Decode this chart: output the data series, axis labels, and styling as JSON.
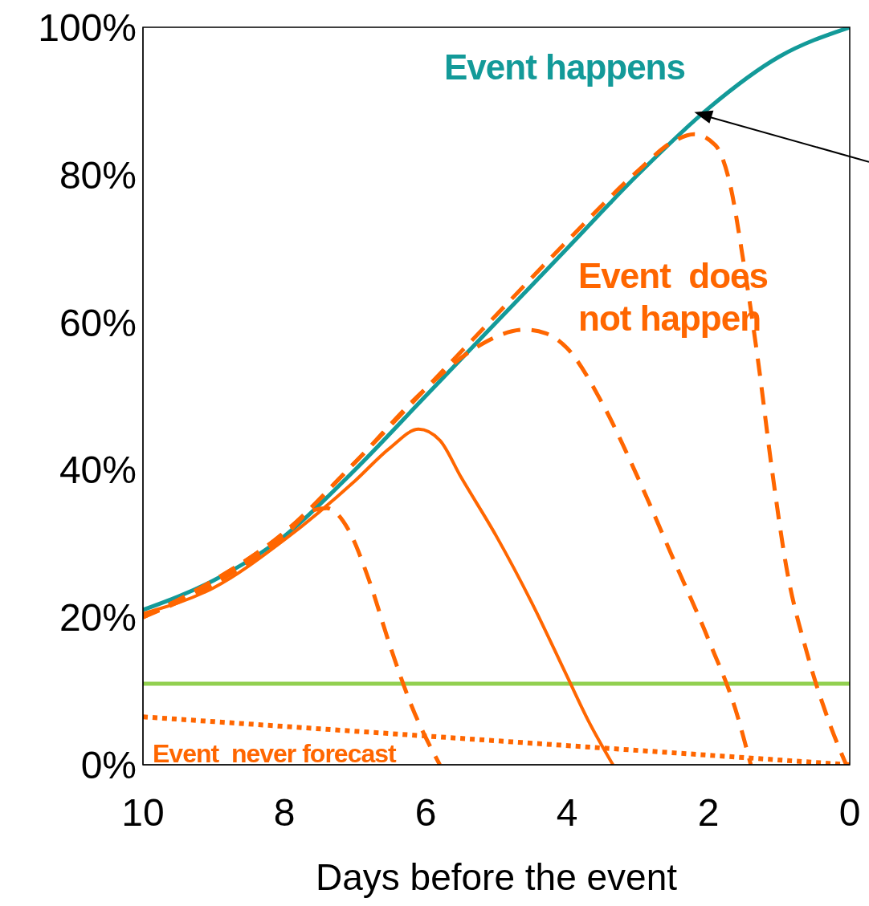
{
  "chart_data": {
    "type": "line",
    "xlabel": "Days before the event",
    "xlim": [
      10,
      0
    ],
    "xticks": [
      10,
      8,
      6,
      4,
      2,
      0
    ],
    "ylim": [
      0,
      100
    ],
    "yticks": [
      {
        "value": 0,
        "label": "0%"
      },
      {
        "value": 20,
        "label": "20%"
      },
      {
        "value": 40,
        "label": "40%"
      },
      {
        "value": 60,
        "label": "60%"
      },
      {
        "value": 80,
        "label": "80%"
      },
      {
        "value": 100,
        "label": "100%"
      }
    ],
    "marker": "none",
    "series": [
      {
        "name": "Event happens",
        "color": "#139a99",
        "line_style": "solid",
        "x": [
          10,
          9,
          8,
          7,
          6,
          5,
          4,
          3,
          2,
          1,
          0
        ],
        "values": [
          21,
          25,
          31,
          40,
          50,
          60,
          70,
          80,
          89,
          96,
          100
        ]
      },
      {
        "color": "#ff6600",
        "line_style": "dashed",
        "x": [
          10,
          9,
          8,
          7.6,
          7.4,
          7.1,
          6.8,
          6.5,
          6.2,
          5.8
        ],
        "values": [
          20,
          24.5,
          31,
          34.5,
          34.8,
          32,
          25,
          16,
          8,
          0
        ]
      },
      {
        "color": "#ff6600",
        "line_style": "solid",
        "x": [
          10,
          9,
          8,
          7,
          6.5,
          6.1,
          5.8,
          5.5,
          5,
          4.5,
          4,
          3.7,
          3.35
        ],
        "values": [
          20.5,
          24,
          30.5,
          38.5,
          43,
          45.5,
          44,
          39,
          31,
          22,
          12,
          6,
          0
        ]
      },
      {
        "name": "Event  does not happen",
        "color": "#ff6600",
        "line_style": "dashed",
        "x": [
          10,
          9,
          8,
          7,
          6,
          5.3,
          4.6,
          4.3,
          4,
          3.5,
          3,
          2.5,
          2,
          1.6,
          1.4
        ],
        "values": [
          20,
          25,
          31.5,
          41,
          51,
          56.5,
          59,
          58.5,
          56.5,
          49,
          39,
          28,
          17,
          7,
          0
        ]
      },
      {
        "color": "#ff6600",
        "line_style": "dashed",
        "x": [
          10,
          9,
          8,
          7,
          6,
          5,
          4,
          3,
          2.5,
          2.2,
          1.9,
          1.7,
          1.5,
          1.3,
          1.1,
          0.9,
          0.6,
          0.3,
          0.05
        ],
        "values": [
          20,
          25,
          31.5,
          41,
          51,
          61,
          71,
          80.5,
          84.5,
          85.5,
          84,
          79,
          68,
          55,
          40,
          27,
          15,
          6,
          0
        ]
      },
      {
        "name": "Event  never forecast",
        "color": "#ff6600",
        "line_style": "dotted",
        "x": [
          10,
          0
        ],
        "values": [
          6.5,
          0
        ]
      }
    ],
    "ref_lines": [
      {
        "axis": "y",
        "value": 11,
        "color": "#92d050",
        "line_style": "solid"
      }
    ]
  }
}
